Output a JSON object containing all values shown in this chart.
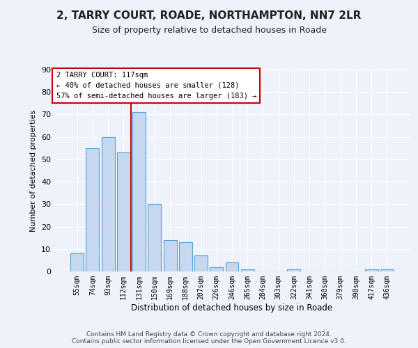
{
  "title": "2, TARRY COURT, ROADE, NORTHAMPTON, NN7 2LR",
  "subtitle": "Size of property relative to detached houses in Roade",
  "xlabel": "Distribution of detached houses by size in Roade",
  "ylabel": "Number of detached properties",
  "categories": [
    "55sqm",
    "74sqm",
    "93sqm",
    "112sqm",
    "131sqm",
    "150sqm",
    "169sqm",
    "188sqm",
    "207sqm",
    "226sqm",
    "246sqm",
    "265sqm",
    "284sqm",
    "303sqm",
    "322sqm",
    "341sqm",
    "360sqm",
    "379sqm",
    "398sqm",
    "417sqm",
    "436sqm"
  ],
  "values": [
    8,
    55,
    60,
    53,
    71,
    30,
    14,
    13,
    7,
    2,
    4,
    1,
    0,
    0,
    1,
    0,
    0,
    0,
    0,
    1,
    1
  ],
  "bar_color": "#c5d8f0",
  "bar_edge_color": "#5a9fd4",
  "red_line_x": 3.5,
  "red_line_color": "#cc0000",
  "annotation_text": "2 TARRY COURT: 117sqm\n← 40% of detached houses are smaller (128)\n57% of semi-detached houses are larger (183) →",
  "ylim": [
    0,
    90
  ],
  "yticks": [
    0,
    10,
    20,
    30,
    40,
    50,
    60,
    70,
    80,
    90
  ],
  "background_color": "#eef2fa",
  "grid_color": "#ffffff",
  "title_fontsize": 11,
  "subtitle_fontsize": 9,
  "footer_line1": "Contains HM Land Registry data © Crown copyright and database right 2024.",
  "footer_line2": "Contains public sector information licensed under the Open Government Licence v3.0."
}
